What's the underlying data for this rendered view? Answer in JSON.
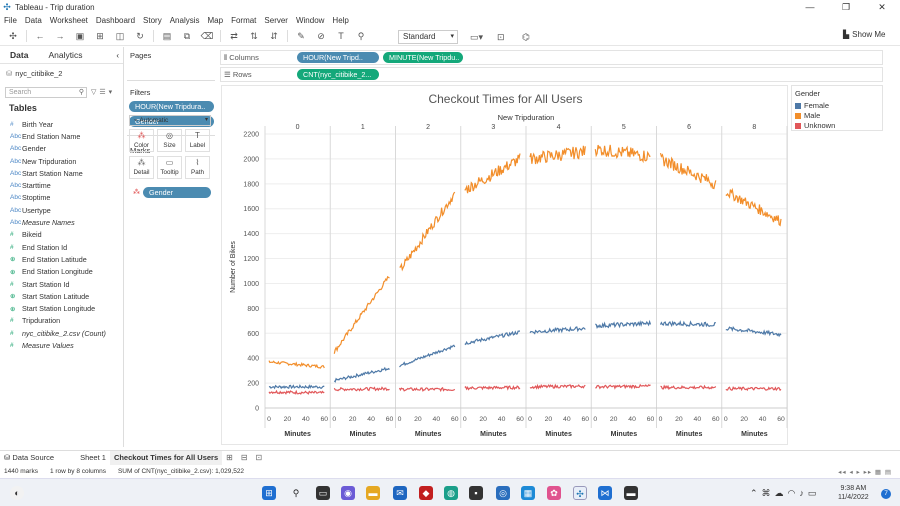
{
  "window": {
    "title": "Tableau - Trip duration",
    "min": "—",
    "max": "❐",
    "close": "✕"
  },
  "menu": [
    "File",
    "Data",
    "Worksheet",
    "Dashboard",
    "Story",
    "Analysis",
    "Map",
    "Format",
    "Server",
    "Window",
    "Help"
  ],
  "toolbar": {
    "fit": "Standard",
    "show_me": "Show Me"
  },
  "data_pane": {
    "tabs": [
      "Data",
      "Analytics"
    ],
    "source": "nyc_citibike_2",
    "search_placeholder": "Search",
    "tables_heading": "Tables",
    "fields": [
      {
        "icon": "#",
        "name": "Birth Year",
        "kind": "dim"
      },
      {
        "icon": "Abc",
        "name": "End Station Name",
        "kind": "dim"
      },
      {
        "icon": "Abc",
        "name": "Gender",
        "kind": "dim"
      },
      {
        "icon": "Abc",
        "name": "New Tripduration",
        "kind": "dim"
      },
      {
        "icon": "Abc",
        "name": "Start Station Name",
        "kind": "dim"
      },
      {
        "icon": "Abc",
        "name": "Starttime",
        "kind": "dim"
      },
      {
        "icon": "Abc",
        "name": "Stoptime",
        "kind": "dim"
      },
      {
        "icon": "Abc",
        "name": "Usertype",
        "kind": "dim"
      },
      {
        "icon": "Abc",
        "name": "Measure Names",
        "kind": "dim",
        "italic": true
      },
      {
        "icon": "#",
        "name": "Bikeid",
        "kind": "meas"
      },
      {
        "icon": "#",
        "name": "End Station Id",
        "kind": "meas"
      },
      {
        "icon": "⊕",
        "name": "End Station Latitude",
        "kind": "meas"
      },
      {
        "icon": "⊕",
        "name": "End Station Longitude",
        "kind": "meas"
      },
      {
        "icon": "#",
        "name": "Start Station Id",
        "kind": "meas"
      },
      {
        "icon": "⊕",
        "name": "Start Station Latitude",
        "kind": "meas"
      },
      {
        "icon": "⊕",
        "name": "Start Station Longitude",
        "kind": "meas"
      },
      {
        "icon": "#",
        "name": "Tripduration",
        "kind": "meas"
      },
      {
        "icon": "#",
        "name": "nyc_citibike_2.csv (Count)",
        "kind": "meas",
        "italic": true
      },
      {
        "icon": "#",
        "name": "Measure Values",
        "kind": "meas",
        "italic": true
      }
    ]
  },
  "cards": {
    "pages": "Pages",
    "filters": "Filters",
    "filter_pills": [
      "HOUR(New Tripdura..",
      "Gender"
    ],
    "marks": "Marks",
    "mark_type": "Automatic",
    "mark_buttons": [
      {
        "label": "Color",
        "icon": "⁂"
      },
      {
        "label": "Size",
        "icon": "◎"
      },
      {
        "label": "Label",
        "icon": "T"
      },
      {
        "label": "Detail",
        "icon": "⁂"
      },
      {
        "label": "Tooltip",
        "icon": "▭"
      },
      {
        "label": "Path",
        "icon": "⌇"
      }
    ],
    "gender_pill": "Gender"
  },
  "shelves": {
    "columns_label": "Columns",
    "column_pills": [
      "HOUR(New Tripd..",
      "MINUTE(New Tripdu.."
    ],
    "rows_label": "Rows",
    "row_pills": [
      "CNT(nyc_citibike_2..."
    ]
  },
  "legend": {
    "title": "Gender",
    "items": [
      {
        "label": "Female",
        "color": "#4e79a7"
      },
      {
        "label": "Male",
        "color": "#f28e2b"
      },
      {
        "label": "Unknown",
        "color": "#e15759"
      }
    ]
  },
  "sheet_tabs": {
    "data_source": "Data Source",
    "sheets": [
      "Sheet 1",
      "Checkout Times for All Users"
    ]
  },
  "status": {
    "marks": "1440 marks",
    "layout": "1 row by 8 columns",
    "sum": "SUM of CNT(nyc_citibike_2.csv): 1,029,522"
  },
  "taskbar": {
    "time": "9:38 AM",
    "date": "11/4/2022",
    "notifications": "7"
  },
  "chart_data": {
    "type": "line",
    "title": "Checkout Times for All Users",
    "panel_header": "New Tripduration",
    "panels": [
      "0",
      "1",
      "2",
      "3",
      "4",
      "5",
      "6",
      "8"
    ],
    "xlabel": "Minutes",
    "x_ticks": [
      "0",
      "20",
      "40",
      "60"
    ],
    "ylabel": "Number of Bikes",
    "ylim": [
      0,
      2200
    ],
    "y_ticks": [
      0,
      200,
      400,
      600,
      800,
      1000,
      1200,
      1400,
      1600,
      1800,
      2000,
      2200
    ],
    "series": [
      {
        "name": "Female",
        "color": "#4e79a7",
        "panel_values": [
          [
            170,
            170
          ],
          [
            220,
            320
          ],
          [
            340,
            500
          ],
          [
            520,
            610
          ],
          [
            610,
            640
          ],
          [
            660,
            680
          ],
          [
            680,
            670
          ],
          [
            640,
            590
          ]
        ]
      },
      {
        "name": "Male",
        "color": "#f28e2b",
        "panel_values": [
          [
            370,
            330
          ],
          [
            450,
            1060
          ],
          [
            1100,
            1720
          ],
          [
            1750,
            2000
          ],
          [
            2000,
            2060
          ],
          [
            2080,
            2020
          ],
          [
            2000,
            1800
          ],
          [
            1740,
            1500
          ]
        ]
      },
      {
        "name": "Unknown",
        "color": "#e15759",
        "panel_values": [
          [
            130,
            120
          ],
          [
            150,
            155
          ],
          [
            150,
            150
          ],
          [
            160,
            165
          ],
          [
            170,
            175
          ],
          [
            170,
            175
          ],
          [
            165,
            165
          ],
          [
            155,
            155
          ]
        ]
      }
    ]
  }
}
